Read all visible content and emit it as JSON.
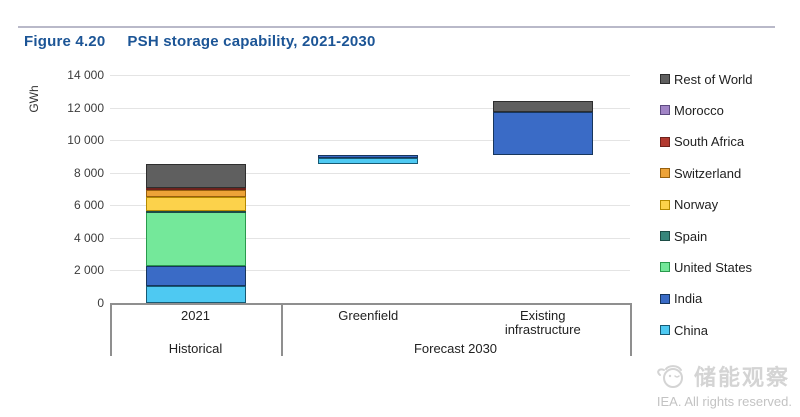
{
  "header": {
    "figure_label": "Figure 4.20",
    "title": "PSH storage capability, 2021-2030"
  },
  "footer": {
    "watermark": "储能观察",
    "copyright": "IEA. All rights reserved."
  },
  "chart_data": {
    "type": "bar",
    "stacked": true,
    "waterfall": true,
    "title": "PSH storage capability, 2021-2030",
    "ylabel": "GWh",
    "units": "GWh",
    "ylim": [
      0,
      14000
    ],
    "ytick_interval": 2000,
    "yticks": [
      {
        "value": 0,
        "label": "0"
      },
      {
        "value": 2000,
        "label": "2 000"
      },
      {
        "value": 4000,
        "label": "4 000"
      },
      {
        "value": 6000,
        "label": "6 000"
      },
      {
        "value": 8000,
        "label": "8 000"
      },
      {
        "value": 10000,
        "label": "10 000"
      },
      {
        "value": 12000,
        "label": "12 000"
      },
      {
        "value": 14000,
        "label": "14 000"
      }
    ],
    "grid": true,
    "legend_position": "right",
    "legend": [
      {
        "label": "Rest of World",
        "color": "#5f5f5f",
        "border": "#2e2e2e"
      },
      {
        "label": "Morocco",
        "color": "#a184c6",
        "border": "#5d4a80"
      },
      {
        "label": "South Africa",
        "color": "#b2392f",
        "border": "#6e221c"
      },
      {
        "label": "Switzerland",
        "color": "#eda338",
        "border": "#96600f"
      },
      {
        "label": "Norway",
        "color": "#fcd24b",
        "border": "#b58a00"
      },
      {
        "label": "Spain",
        "color": "#37867b",
        "border": "#1c4c45"
      },
      {
        "label": "United States",
        "color": "#74e89a",
        "border": "#2a9a4d"
      },
      {
        "label": "India",
        "color": "#3a6bc6",
        "border": "#17365d"
      },
      {
        "label": "China",
        "color": "#4ec9f2",
        "border": "#175a74"
      }
    ],
    "groups": [
      {
        "label": "Historical",
        "categories": [
          "2021"
        ]
      },
      {
        "label": "Forecast 2030",
        "categories": [
          "Greenfield",
          "Existing infrastructure"
        ]
      }
    ],
    "bars": [
      {
        "category": "2021",
        "group": "Historical",
        "base": 0,
        "total": 8500,
        "segments": [
          {
            "name": "China",
            "value": 1000
          },
          {
            "name": "India",
            "value": 1250
          },
          {
            "name": "United States",
            "value": 3300
          },
          {
            "name": "Spain",
            "value": 100
          },
          {
            "name": "Norway",
            "value": 850
          },
          {
            "name": "Switzerland",
            "value": 400
          },
          {
            "name": "South Africa",
            "value": 150
          },
          {
            "name": "Rest of World",
            "value": 1450
          }
        ]
      },
      {
        "category": "Greenfield",
        "group": "Forecast 2030",
        "base": 8500,
        "total": 9100,
        "segments": [
          {
            "name": "China",
            "value": 400
          },
          {
            "name": "India",
            "value": 200
          }
        ]
      },
      {
        "category": "Existing infrastructure",
        "group": "Forecast 2030",
        "base": 9100,
        "total": 12400,
        "segments": [
          {
            "name": "India",
            "value": 2600
          },
          {
            "name": "Rest of World",
            "value": 700
          }
        ]
      }
    ],
    "source_note": "IEA. All rights reserved."
  }
}
